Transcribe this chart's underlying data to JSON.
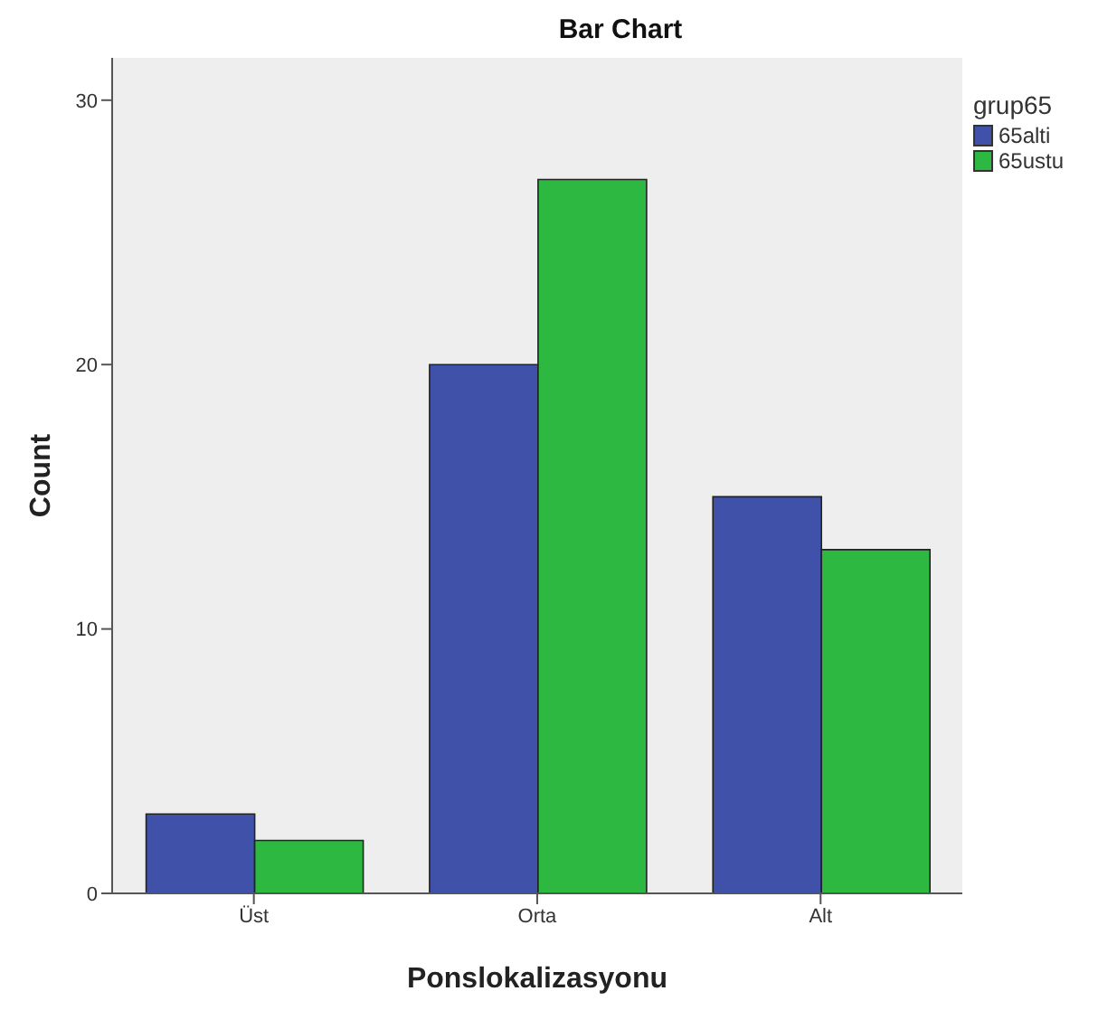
{
  "chart_data": {
    "type": "bar",
    "title": "Bar Chart",
    "xlabel": "Ponslokalizasyonu",
    "ylabel": "Count",
    "legend_title": "grup65",
    "categories": [
      "Üst",
      "Orta",
      "Alt"
    ],
    "series": [
      {
        "name": "65alti",
        "color": "#3f51a8",
        "values": [
          3,
          20,
          15
        ]
      },
      {
        "name": "65ustu",
        "color": "#2db842",
        "values": [
          2,
          27,
          13
        ]
      }
    ],
    "ylim": [
      0,
      31.6
    ],
    "yticks": [
      0,
      10,
      20,
      30
    ],
    "grid": false,
    "legend": "top right"
  }
}
